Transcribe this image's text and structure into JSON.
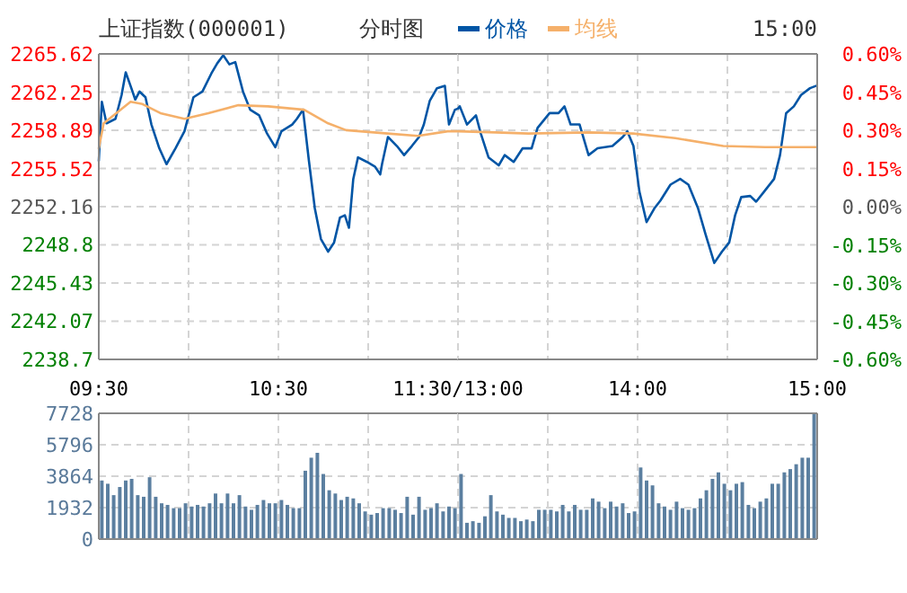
{
  "chart_data": [
    {
      "type": "line",
      "title": "上证指数(000001)",
      "subtitle": "分时图",
      "legend": "top",
      "grid": true,
      "line_style": "solid",
      "marker": "none",
      "xlim": [
        9.5,
        11.5
      ],
      "xticks": [
        {
          "value": 9.5,
          "label": "09:30"
        },
        {
          "value": 10,
          "label": null
        },
        {
          "value": 10.5,
          "label": "10:30"
        },
        {
          "value": 11,
          "label": null
        },
        {
          "value": 11.5,
          "label": "11:30/13:00"
        }
      ],
      "ylim": [
        2238.7,
        2265.62
      ],
      "yticks": [
        2238.7,
        2242.07,
        2245.43,
        2248.8,
        2252.16,
        2255.52,
        2258.89,
        2262.25,
        2265.62
      ],
      "series": [
        {
          "name": "价格",
          "color": "#0055a5",
          "x": [
            9.5,
            9.517,
            9.543,
            9.593,
            9.627,
            9.65,
            9.677,
            9.703,
            9.727,
            9.76,
            9.793,
            9.837,
            9.877,
            9.927,
            9.977,
            10.027,
            10.077,
            10.127,
            10.16,
            10.193,
            10.227,
            10.26,
            10.303,
            10.343,
            10.393,
            10.437,
            10.483,
            10.517,
            10.577,
            10.603,
            10.637,
            10.67,
            10.703,
            10.737,
            10.777,
            10.81,
            10.843,
            10.87,
            10.893,
            10.917,
            10.943,
            10.993,
            11.037,
            11.067,
            11.077,
            11.11,
            11.16,
            11.2,
            11.243,
            11.283,
            11.31,
            11.343,
            11.383,
            11.427,
            11.45,
            11.483,
            11.5
          ],
          "values": [
            2256.2,
            2261.4,
            2259.5,
            2259.9,
            2262.0,
            2264.0,
            2262.8,
            2261.6,
            2262.3,
            2261.8,
            2259.4,
            2257.3,
            2255.9,
            2257.3,
            2258.8,
            2261.8,
            2262.3,
            2263.9,
            2264.8,
            2265.5,
            2264.7,
            2264.9,
            2262.3,
            2260.7,
            2260.2,
            2258.6,
            2257.4,
            2258.8,
            2259.4,
            2259.9,
            2260.7,
            2256.2,
            2252.0,
            2249.3,
            2248.2,
            2249.0,
            2251.2,
            2251.4,
            2250.3,
            2254.6,
            2256.5,
            2256.1,
            2255.7,
            2255.0,
            2255.9,
            2258.3,
            2257.5,
            2256.7,
            2257.5,
            2258.3,
            2259.4,
            2261.5,
            2262.6,
            2262.8,
            2259.4,
            2260.7,
            2260.8
          ]
        },
        {
          "name": "均线",
          "color": "#f5b06a",
          "x": [
            9.5,
            9.527,
            9.677,
            9.743,
            9.843,
            9.977,
            10.11,
            10.277,
            10.443,
            10.643,
            10.777,
            10.877,
            11.11,
            11.277,
            11.443,
            11.5
          ],
          "values": [
            2257.3,
            2259.5,
            2261.4,
            2261.2,
            2260.4,
            2259.9,
            2260.4,
            2261.1,
            2261.0,
            2260.7,
            2259.5,
            2258.9,
            2258.6,
            2258.4,
            2258.8,
            2258.8
          ]
        }
      ]
    },
    {
      "type": "line",
      "annotations": [
        "15:00"
      ],
      "grid": true,
      "line_style": "solid",
      "marker": "none",
      "tick_labels": "x",
      "xlim": [
        13,
        15
      ],
      "xticks": [
        {
          "value": 13,
          "label": null
        },
        {
          "value": 13.5,
          "label": null
        },
        {
          "value": 14,
          "label": "14:00"
        },
        {
          "value": 14.5,
          "label": null
        },
        {
          "value": 15,
          "label": "15:00"
        }
      ],
      "ylim": [
        2238.7,
        2265.62
      ],
      "yticks": [
        2238.7,
        2242.07,
        2245.43,
        2248.8,
        2252.16,
        2255.52,
        2258.89,
        2262.25,
        2265.62
      ],
      "y2lim": [
        -0.6,
        0.6
      ],
      "y2ticks": [
        {
          "value": -0.6,
          "label": "-0.60%"
        },
        {
          "value": -0.45,
          "label": "-0.45%"
        },
        {
          "value": -0.3,
          "label": "-0.30%"
        },
        {
          "value": -0.15,
          "label": "-0.15%"
        },
        {
          "value": 0,
          "label": "0.00%"
        },
        {
          "value": 0.15,
          "label": "0.15%"
        },
        {
          "value": 0.3,
          "label": "0.30%"
        },
        {
          "value": 0.45,
          "label": "0.45%"
        },
        {
          "value": 0.6,
          "label": "0.60%"
        }
      ],
      "series": [
        {
          "color": "#0055a5",
          "x": [
            13,
            13.01,
            13.05,
            13.1,
            13.127,
            13.17,
            13.227,
            13.26,
            13.31,
            13.36,
            13.41,
            13.443,
            13.51,
            13.56,
            13.593,
            13.627,
            13.677,
            13.727,
            13.777,
            13.86,
            13.917,
            13.943,
            13.977,
            14.01,
            14.05,
            14.093,
            14.127,
            14.183,
            14.237,
            14.283,
            14.337,
            14.377,
            14.427,
            14.47,
            14.51,
            14.543,
            14.577,
            14.627,
            14.66,
            14.71,
            14.76,
            14.793,
            14.827,
            14.87,
            14.91,
            14.96,
            14.993
          ],
          "values": [
            2260.8,
            2261.0,
            2259.4,
            2260.2,
            2258.6,
            2256.5,
            2255.8,
            2256.7,
            2256.1,
            2257.3,
            2257.3,
            2259.1,
            2260.4,
            2260.4,
            2261.0,
            2259.4,
            2259.4,
            2256.7,
            2257.3,
            2257.5,
            2258.3,
            2258.8,
            2257.5,
            2253.5,
            2250.8,
            2252.0,
            2252.7,
            2254.1,
            2254.6,
            2254.1,
            2252.0,
            2249.8,
            2247.2,
            2248.2,
            2249.0,
            2251.4,
            2253.0,
            2253.1,
            2252.6,
            2253.6,
            2254.6,
            2256.7,
            2260.4,
            2261.0,
            2262.0,
            2262.6,
            2262.8
          ]
        },
        {
          "color": "#f5b06a",
          "x": [
            13,
            13.21,
            13.393,
            13.727,
            13.977,
            14.21,
            14.477,
            14.71,
            14.993
          ],
          "values": [
            2258.8,
            2258.7,
            2258.6,
            2258.7,
            2258.6,
            2258.2,
            2257.5,
            2257.4,
            2257.4
          ]
        }
      ]
    },
    {
      "type": "bar",
      "grid": true,
      "tick_labels": "y",
      "xlim": [
        9.5,
        11.5
      ],
      "xticks": [
        {
          "value": 9.5,
          "label": null
        },
        {
          "value": 10,
          "label": null
        },
        {
          "value": 10.5,
          "label": null
        },
        {
          "value": 11,
          "label": null
        },
        {
          "value": 11.5,
          "label": null
        }
      ],
      "ylim": [
        0,
        7728
      ],
      "yticks": [
        0,
        1932,
        3864,
        5796,
        7728
      ],
      "series": [
        {
          "color": "#5b7fa0",
          "x": [
            9.517,
            9.55,
            9.583,
            9.617,
            9.65,
            9.683,
            9.717,
            9.75,
            9.783,
            9.817,
            9.85,
            9.883,
            9.917,
            9.95,
            9.983,
            10.017,
            10.05,
            10.083,
            10.117,
            10.15,
            10.183,
            10.217,
            10.25,
            10.283,
            10.317,
            10.35,
            10.383,
            10.417,
            10.45,
            10.483,
            10.517,
            10.55,
            10.583,
            10.617,
            10.65,
            10.683,
            10.717,
            10.75,
            10.783,
            10.817,
            10.85,
            10.883,
            10.917,
            10.95,
            10.983,
            11.017,
            11.05,
            11.083,
            11.117,
            11.15,
            11.183,
            11.217,
            11.25,
            11.283,
            11.317,
            11.35,
            11.383,
            11.417,
            11.45,
            11.483
          ],
          "values": [
            3600,
            3400,
            2700,
            3200,
            3600,
            3700,
            2700,
            2600,
            3800,
            2600,
            2200,
            2100,
            1900,
            1900,
            2200,
            2000,
            2100,
            2000,
            2200,
            2800,
            2200,
            2800,
            2200,
            2700,
            2000,
            1800,
            2100,
            2400,
            2200,
            2200,
            2400,
            2100,
            1900,
            1900,
            4200,
            5000,
            5300,
            4000,
            3000,
            2800,
            2400,
            2600,
            2500,
            2200,
            1700,
            1500,
            1600,
            1900,
            1900,
            1800,
            1600,
            2600,
            1500,
            2600,
            1800,
            1900,
            2200,
            1700,
            2000,
            1900
          ]
        }
      ]
    },
    {
      "type": "bar",
      "grid": true,
      "tick_labels": false,
      "xlim": [
        13,
        15
      ],
      "xticks": [
        {
          "value": 13,
          "label": null
        },
        {
          "value": 13.5,
          "label": null
        },
        {
          "value": 14,
          "label": null
        },
        {
          "value": 14.5,
          "label": null
        },
        {
          "value": 15,
          "label": null
        }
      ],
      "ylim": [
        0,
        7728
      ],
      "yticks": [
        0,
        1932,
        3864,
        5796,
        7728
      ],
      "series": [
        {
          "color": "#5b7fa0",
          "x": [
            13.017,
            13.05,
            13.083,
            13.117,
            13.15,
            13.183,
            13.217,
            13.25,
            13.283,
            13.317,
            13.35,
            13.383,
            13.417,
            13.45,
            13.483,
            13.517,
            13.55,
            13.583,
            13.617,
            13.65,
            13.683,
            13.717,
            13.75,
            13.783,
            13.817,
            13.85,
            13.883,
            13.917,
            13.95,
            13.983,
            14.017,
            14.05,
            14.083,
            14.117,
            14.15,
            14.183,
            14.217,
            14.25,
            14.283,
            14.317,
            14.35,
            14.383,
            14.417,
            14.45,
            14.483,
            14.517,
            14.55,
            14.583,
            14.617,
            14.65,
            14.683,
            14.717,
            14.75,
            14.783,
            14.817,
            14.85,
            14.883,
            14.917,
            14.95,
            14.983
          ],
          "values": [
            4000,
            1000,
            1100,
            1000,
            1400,
            2700,
            1700,
            1500,
            1300,
            1300,
            1100,
            1200,
            1100,
            1800,
            1800,
            1800,
            1700,
            2100,
            1700,
            2100,
            1800,
            1800,
            2500,
            2300,
            1900,
            2300,
            2000,
            2200,
            1600,
            1700,
            4400,
            3600,
            3300,
            2200,
            2000,
            1800,
            2300,
            1900,
            1800,
            1900,
            2500,
            3000,
            3700,
            4100,
            3400,
            3000,
            3400,
            3500,
            2100,
            1900,
            2300,
            2500,
            3400,
            3400,
            4100,
            4300,
            4600,
            5000,
            5000,
            7700
          ]
        }
      ]
    }
  ]
}
